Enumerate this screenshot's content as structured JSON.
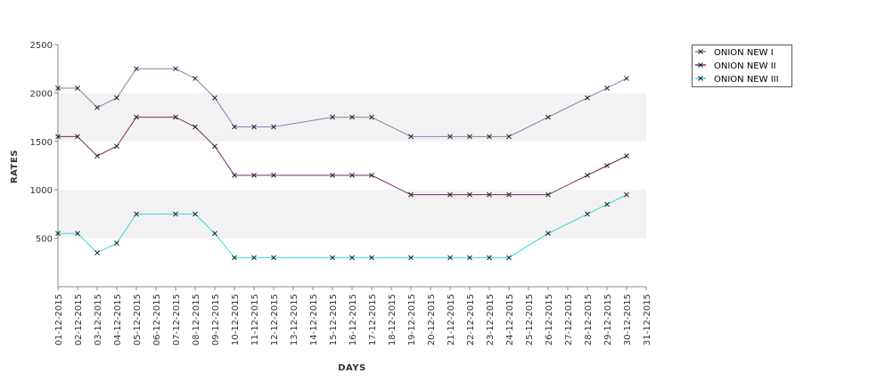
{
  "chart_data": {
    "type": "line",
    "title": "",
    "xlabel": "DAYS",
    "ylabel": "RATES",
    "ylim": [
      0,
      2500
    ],
    "yticks": [
      500,
      1000,
      1500,
      2000,
      2500
    ],
    "grid": "alternating horizontal bands",
    "legend_position": "top-right",
    "x": [
      "01-12-2015",
      "02-12-2015",
      "03-12-2015",
      "04-12-2015",
      "05-12-2015",
      "06-12-2015",
      "07-12-2015",
      "08-12-2015",
      "09-12-2015",
      "10-12-2015",
      "11-12-2015",
      "12-12-2015",
      "13-12-2015",
      "14-12-2015",
      "15-12-2015",
      "16-12-2015",
      "17-12-2015",
      "18-12-2015",
      "19-12-2015",
      "20-12-2015",
      "21-12-2015",
      "22-12-2015",
      "23-12-2015",
      "24-12-2015",
      "25-12-2015",
      "26-12-2015",
      "27-12-2015",
      "28-12-2015",
      "29-12-2015",
      "30-12-2015",
      "31-12-2015"
    ],
    "series": [
      {
        "name": "ONION NEW I",
        "color": "#8c7fb0",
        "points": [
          [
            "01-12-2015",
            2050
          ],
          [
            "02-12-2015",
            2050
          ],
          [
            "03-12-2015",
            1850
          ],
          [
            "04-12-2015",
            1950
          ],
          [
            "05-12-2015",
            2250
          ],
          [
            "07-12-2015",
            2250
          ],
          [
            "08-12-2015",
            2150
          ],
          [
            "09-12-2015",
            1950
          ],
          [
            "10-12-2015",
            1650
          ],
          [
            "11-12-2015",
            1650
          ],
          [
            "12-12-2015",
            1650
          ],
          [
            "15-12-2015",
            1750
          ],
          [
            "16-12-2015",
            1750
          ],
          [
            "17-12-2015",
            1750
          ],
          [
            "19-12-2015",
            1550
          ],
          [
            "21-12-2015",
            1550
          ],
          [
            "22-12-2015",
            1550
          ],
          [
            "23-12-2015",
            1550
          ],
          [
            "24-12-2015",
            1550
          ],
          [
            "26-12-2015",
            1750
          ],
          [
            "28-12-2015",
            1950
          ],
          [
            "29-12-2015",
            2050
          ],
          [
            "30-12-2015",
            2150
          ]
        ]
      },
      {
        "name": "ONION NEW II",
        "color": "#7a2a6a",
        "points": [
          [
            "01-12-2015",
            1550
          ],
          [
            "02-12-2015",
            1550
          ],
          [
            "03-12-2015",
            1350
          ],
          [
            "04-12-2015",
            1450
          ],
          [
            "05-12-2015",
            1750
          ],
          [
            "07-12-2015",
            1750
          ],
          [
            "08-12-2015",
            1650
          ],
          [
            "09-12-2015",
            1450
          ],
          [
            "10-12-2015",
            1150
          ],
          [
            "11-12-2015",
            1150
          ],
          [
            "12-12-2015",
            1150
          ],
          [
            "15-12-2015",
            1150
          ],
          [
            "16-12-2015",
            1150
          ],
          [
            "17-12-2015",
            1150
          ],
          [
            "19-12-2015",
            950
          ],
          [
            "21-12-2015",
            950
          ],
          [
            "22-12-2015",
            950
          ],
          [
            "23-12-2015",
            950
          ],
          [
            "24-12-2015",
            950
          ],
          [
            "26-12-2015",
            950
          ],
          [
            "28-12-2015",
            1150
          ],
          [
            "29-12-2015",
            1250
          ],
          [
            "30-12-2015",
            1350
          ]
        ]
      },
      {
        "name": "ONION NEW III",
        "color": "#33d6db",
        "points": [
          [
            "01-12-2015",
            550
          ],
          [
            "02-12-2015",
            550
          ],
          [
            "03-12-2015",
            350
          ],
          [
            "04-12-2015",
            450
          ],
          [
            "05-12-2015",
            750
          ],
          [
            "07-12-2015",
            750
          ],
          [
            "08-12-2015",
            750
          ],
          [
            "09-12-2015",
            550
          ],
          [
            "10-12-2015",
            300
          ],
          [
            "11-12-2015",
            300
          ],
          [
            "12-12-2015",
            300
          ],
          [
            "15-12-2015",
            300
          ],
          [
            "16-12-2015",
            300
          ],
          [
            "17-12-2015",
            300
          ],
          [
            "19-12-2015",
            300
          ],
          [
            "21-12-2015",
            300
          ],
          [
            "22-12-2015",
            300
          ],
          [
            "23-12-2015",
            300
          ],
          [
            "24-12-2015",
            300
          ],
          [
            "26-12-2015",
            550
          ],
          [
            "28-12-2015",
            750
          ],
          [
            "29-12-2015",
            850
          ],
          [
            "30-12-2015",
            950
          ]
        ]
      }
    ]
  }
}
